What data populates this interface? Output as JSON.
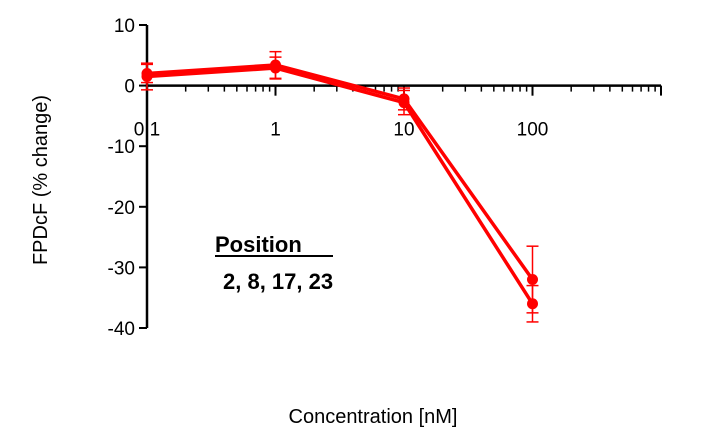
{
  "chart_data": {
    "type": "line",
    "xscale": "log",
    "xlabel": "Concentration [nM]",
    "ylabel": "FPDcF (% change)",
    "xlim": [
      0.1,
      1000
    ],
    "ylim": [
      -40,
      10
    ],
    "x_ticks": [
      0.1,
      1,
      10,
      100
    ],
    "x_tick_labels": [
      "0.1",
      "1",
      "10",
      "100"
    ],
    "y_ticks": [
      10,
      0,
      -10,
      -20,
      -30,
      -40
    ],
    "y_tick_labels": [
      "10",
      "0",
      "-10",
      "-20",
      "-30",
      "-40"
    ],
    "grid": false,
    "series_color": "#ff0000",
    "x": [
      0.1,
      1,
      10,
      100
    ],
    "series": [
      {
        "values": [
          2.0,
          3.4,
          -2.2,
          -32.0
        ],
        "errors": [
          1.5,
          2.2,
          1.8,
          5.5
        ]
      },
      {
        "values": [
          1.5,
          2.9,
          -2.8,
          -36.0
        ],
        "errors": [
          2.2,
          1.8,
          2.0,
          3.0
        ]
      }
    ],
    "annotation": {
      "title": "Position",
      "text": "2, 8, 17, 23"
    }
  }
}
